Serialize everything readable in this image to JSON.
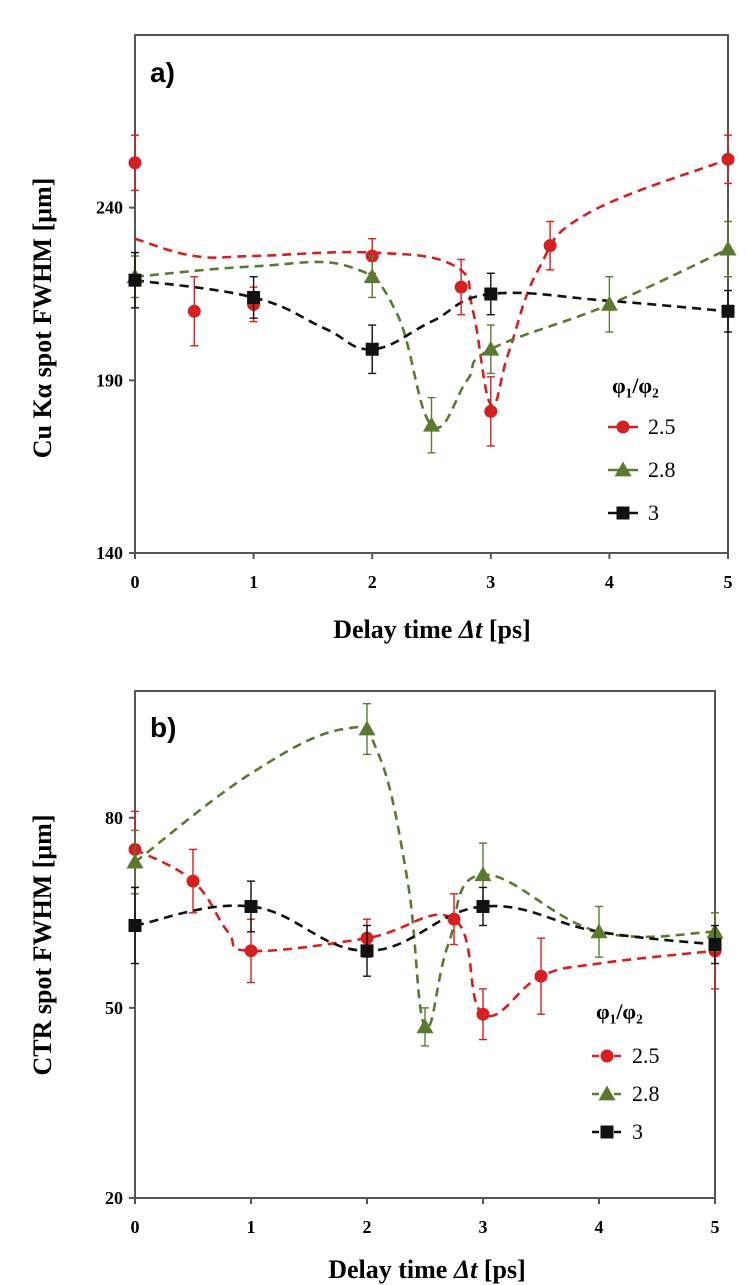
{
  "chart_data": [
    {
      "type": "line",
      "panel_label": "a)",
      "xlabel": "Delay time Δt [ps]",
      "ylabel": "Cu Kα spot FWHM [μm]",
      "xlim": [
        0,
        5
      ],
      "ylim": [
        140,
        290
      ],
      "yticks": [
        140,
        190,
        240
      ],
      "xticks": [
        0,
        1,
        2,
        3,
        4,
        5
      ],
      "legend_title": "φ₁/φ₂",
      "legend_position": "right",
      "series": [
        {
          "name": "2.5",
          "color": "#d42020",
          "marker": "circle",
          "x": [
            0,
            0.5,
            1,
            2,
            2.75,
            3,
            3.5,
            5
          ],
          "y": [
            253,
            210,
            212,
            226,
            217,
            181,
            229,
            254
          ],
          "err": [
            8,
            10,
            5,
            5,
            8,
            10,
            7,
            7
          ],
          "curve": [
            [
              0,
              231
            ],
            [
              0.5,
              226
            ],
            [
              1,
              226
            ],
            [
              2,
              227
            ],
            [
              2.7,
              223
            ],
            [
              2.85,
              210
            ],
            [
              3,
              183
            ],
            [
              3.15,
              198
            ],
            [
              3.4,
              222
            ],
            [
              3.8,
              238
            ],
            [
              5,
              254
            ]
          ]
        },
        {
          "name": "2.8",
          "color": "#5a7a32",
          "marker": "triangle",
          "x": [
            0,
            2,
            2.5,
            3,
            4,
            5
          ],
          "y": [
            220,
            220,
            177,
            199,
            212,
            228
          ],
          "err": [
            6,
            6,
            8,
            7,
            8,
            8
          ],
          "curve": [
            [
              0,
              220
            ],
            [
              1,
              223
            ],
            [
              1.8,
              223
            ],
            [
              2.2,
              210
            ],
            [
              2.5,
              177
            ],
            [
              2.8,
              190
            ],
            [
              3,
              199
            ],
            [
              4,
              212
            ],
            [
              5,
              228
            ]
          ]
        },
        {
          "name": "3",
          "color": "#111111",
          "marker": "square",
          "x": [
            0,
            1,
            2,
            3,
            5
          ],
          "y": [
            219,
            214,
            199,
            215,
            210
          ],
          "err": [
            8,
            6,
            7,
            6,
            6
          ],
          "curve": [
            [
              0,
              219
            ],
            [
              1,
              214
            ],
            [
              1.6,
              205
            ],
            [
              2,
              199
            ],
            [
              2.5,
              207
            ],
            [
              3,
              215
            ],
            [
              4,
              213
            ],
            [
              5,
              210
            ]
          ]
        }
      ]
    },
    {
      "type": "line",
      "panel_label": "b)",
      "xlabel": "Delay time Δt [ps]",
      "ylabel": "CTR spot FWHM [μm]",
      "xlim": [
        0,
        5
      ],
      "ylim": [
        20,
        100
      ],
      "yticks": [
        20,
        50,
        80
      ],
      "xticks": [
        0,
        1,
        2,
        3,
        4,
        5
      ],
      "legend_title": "φ₁/φ₂",
      "legend_position": "bottom-right",
      "series": [
        {
          "name": "2.5",
          "color": "#d42020",
          "marker": "circle",
          "x": [
            0,
            0.5,
            1,
            2,
            2.75,
            3,
            3.5,
            5
          ],
          "y": [
            75,
            70,
            59,
            61,
            64,
            49,
            55,
            59
          ],
          "err": [
            6,
            5,
            5,
            3,
            4,
            4,
            6,
            6
          ],
          "curve": [
            [
              0,
              75
            ],
            [
              0.5,
              70
            ],
            [
              0.8,
              62
            ],
            [
              1,
              59
            ],
            [
              2,
              61
            ],
            [
              2.75,
              64
            ],
            [
              3,
              49
            ],
            [
              3.5,
              55
            ],
            [
              4,
              57
            ],
            [
              5,
              59
            ]
          ]
        },
        {
          "name": "2.8",
          "color": "#5a7a32",
          "marker": "triangle",
          "x": [
            0,
            2,
            2.5,
            3,
            4,
            5
          ],
          "y": [
            73,
            94,
            47,
            71,
            62,
            62
          ],
          "err": [
            5,
            4,
            3,
            5,
            4,
            3
          ],
          "curve": [
            [
              0,
              73
            ],
            [
              1,
              87
            ],
            [
              1.8,
              94
            ],
            [
              2.1,
              90
            ],
            [
              2.35,
              70
            ],
            [
              2.5,
              47
            ],
            [
              2.7,
              60
            ],
            [
              3,
              71
            ],
            [
              4,
              62
            ],
            [
              5,
              62
            ]
          ]
        },
        {
          "name": "3",
          "color": "#111111",
          "marker": "square",
          "x": [
            0,
            1,
            2,
            3,
            5
          ],
          "y": [
            63,
            66,
            59,
            66,
            60
          ],
          "err": [
            6,
            4,
            4,
            3,
            3
          ],
          "curve": [
            [
              0,
              63
            ],
            [
              1,
              66
            ],
            [
              2,
              59
            ],
            [
              3,
              66
            ],
            [
              4,
              62
            ],
            [
              5,
              60
            ]
          ]
        }
      ]
    }
  ]
}
